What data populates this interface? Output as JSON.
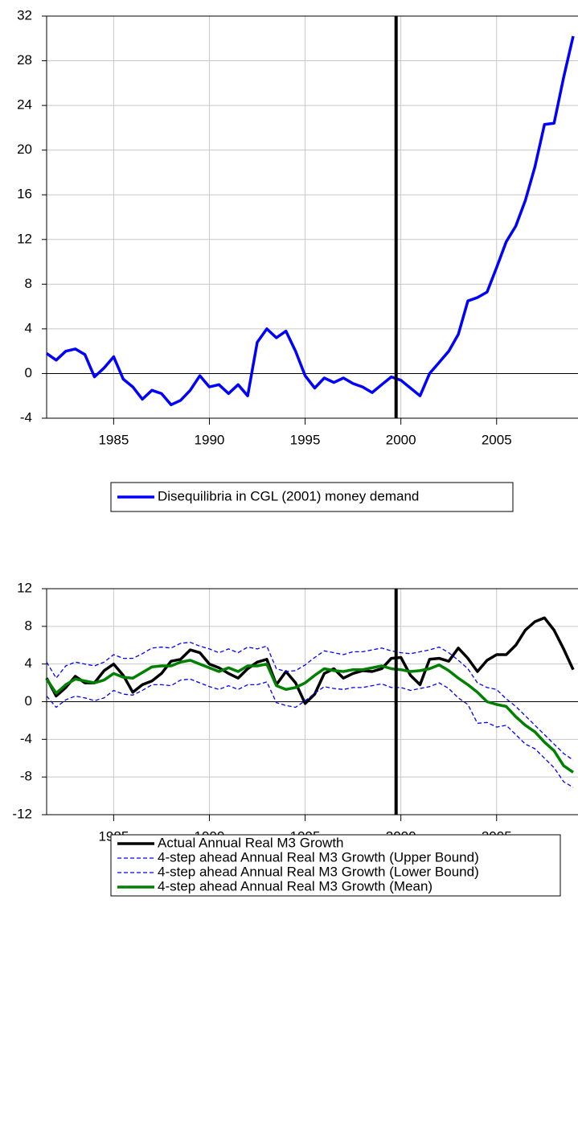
{
  "chart_data": [
    {
      "type": "line",
      "x": [
        1981.5,
        1982,
        1982.5,
        1983,
        1983.5,
        1984,
        1984.5,
        1985,
        1985.5,
        1986,
        1986.5,
        1987,
        1987.5,
        1988,
        1988.5,
        1989,
        1989.5,
        1990,
        1990.5,
        1991,
        1991.5,
        1992,
        1992.5,
        1993,
        1993.5,
        1994,
        1994.5,
        1995,
        1995.5,
        1996,
        1996.5,
        1997,
        1997.5,
        1998,
        1998.5,
        1999,
        1999.5,
        2000,
        2000.5,
        2001,
        2001.5,
        2002,
        2002.5,
        2003,
        2003.5,
        2004,
        2004.5,
        2005,
        2005.5,
        2006,
        2006.5,
        2007,
        2007.5,
        2008,
        2008.5,
        2009
      ],
      "series": [
        {
          "name": "Disequilibria in CGL (2001) money demand",
          "color": "#0000ff",
          "dashed": false,
          "values": [
            1.8,
            1.2,
            2.0,
            2.2,
            1.7,
            -0.3,
            0.5,
            1.5,
            -0.5,
            -1.2,
            -2.3,
            -1.5,
            -1.8,
            -2.8,
            -2.4,
            -1.5,
            -0.2,
            -1.2,
            -1.0,
            -1.8,
            -1.0,
            -2.0,
            2.8,
            4.0,
            3.2,
            3.8,
            2.0,
            -0.2,
            -1.3,
            -0.4,
            -0.8,
            -0.4,
            -0.9,
            -1.2,
            -1.7,
            -1.0,
            -0.3,
            -0.6,
            -1.3,
            -2.0,
            0.0,
            1.0,
            2.0,
            3.5,
            6.5,
            6.8,
            7.3,
            9.5,
            11.8,
            13.2,
            15.5,
            18.5,
            22.3,
            22.4,
            26.5,
            30.2
          ]
        }
      ],
      "xlim": [
        1981.5,
        2009.25
      ],
      "xticks": [
        1985,
        1990,
        1995,
        2000,
        2005
      ],
      "ylim": [
        -4,
        32
      ],
      "yticks": [
        -4,
        0,
        4,
        8,
        12,
        16,
        20,
        24,
        28,
        32
      ],
      "vline": 1999.75,
      "grid": true
    },
    {
      "type": "line",
      "x": [
        1981.5,
        1982,
        1982.5,
        1983,
        1983.5,
        1984,
        1984.5,
        1985,
        1985.5,
        1986,
        1986.5,
        1987,
        1987.5,
        1988,
        1988.5,
        1989,
        1989.5,
        1990,
        1990.5,
        1991,
        1991.5,
        1992,
        1992.5,
        1993,
        1993.5,
        1994,
        1994.5,
        1995,
        1995.5,
        1996,
        1996.5,
        1997,
        1997.5,
        1998,
        1998.5,
        1999,
        1999.5,
        2000,
        2000.5,
        2001,
        2001.5,
        2002,
        2002.5,
        2003,
        2003.5,
        2004,
        2004.5,
        2005,
        2005.5,
        2006,
        2006.5,
        2007,
        2007.5,
        2008,
        2008.5,
        2009
      ],
      "series": [
        {
          "name": "Actual Annual Real M3 Growth",
          "color": "#000000",
          "dashed": false,
          "values": [
            2.5,
            0.6,
            1.5,
            2.7,
            2.0,
            2.0,
            3.3,
            4.0,
            2.8,
            1.0,
            1.8,
            2.2,
            3.0,
            4.3,
            4.5,
            5.5,
            5.2,
            4.0,
            3.6,
            3.0,
            2.5,
            3.5,
            4.2,
            4.5,
            1.8,
            3.2,
            2.0,
            -0.2,
            0.8,
            3.0,
            3.5,
            2.5,
            3.0,
            3.3,
            3.2,
            3.5,
            4.6,
            4.7,
            2.8,
            1.8,
            4.5,
            4.6,
            4.3,
            5.7,
            4.6,
            3.2,
            4.4,
            5.0,
            5.0,
            6.0,
            7.6,
            8.5,
            8.9,
            7.6,
            5.6,
            3.4
          ]
        },
        {
          "name": "4-step ahead Annual Real M3 Growth (Upper Bound)",
          "color": "#0000ff",
          "dashed": true,
          "values": [
            4.2,
            2.5,
            3.8,
            4.2,
            4.0,
            3.8,
            4.2,
            5.0,
            4.6,
            4.6,
            5.1,
            5.7,
            5.8,
            5.7,
            6.2,
            6.3,
            5.9,
            5.6,
            5.2,
            5.6,
            5.2,
            5.8,
            5.6,
            5.9,
            3.5,
            3.2,
            3.3,
            3.9,
            4.7,
            5.4,
            5.2,
            5.0,
            5.3,
            5.3,
            5.5,
            5.7,
            5.4,
            5.2,
            5.1,
            5.3,
            5.5,
            5.8,
            5.2,
            4.4,
            3.5,
            2.0,
            1.5,
            1.3,
            0.3,
            -0.5,
            -1.5,
            -2.5,
            -3.5,
            -4.5,
            -5.5,
            -6.2
          ]
        },
        {
          "name": "4-step ahead Annual Real M3 Growth (Lower Bound)",
          "color": "#0000ff",
          "dashed": true,
          "values": [
            0.6,
            -0.6,
            0.2,
            0.6,
            0.4,
            0.1,
            0.4,
            1.2,
            0.8,
            0.7,
            1.2,
            1.8,
            1.8,
            1.7,
            2.3,
            2.4,
            2.0,
            1.6,
            1.3,
            1.7,
            1.3,
            1.8,
            1.8,
            2.1,
            -0.1,
            -0.4,
            -0.6,
            0.1,
            0.9,
            1.6,
            1.4,
            1.3,
            1.5,
            1.5,
            1.7,
            1.9,
            1.5,
            1.5,
            1.2,
            1.4,
            1.6,
            2.0,
            1.4,
            0.4,
            -0.3,
            -2.3,
            -2.2,
            -2.7,
            -2.5,
            -3.5,
            -4.5,
            -5.0,
            -6.0,
            -7.0,
            -8.5,
            -9.1
          ]
        },
        {
          "name": "4-step ahead Annual Real M3 Growth (Mean)",
          "color": "#008000",
          "dashed": false,
          "values": [
            2.4,
            0.9,
            1.8,
            2.4,
            2.2,
            2.0,
            2.3,
            3.0,
            2.6,
            2.5,
            3.1,
            3.7,
            3.8,
            3.8,
            4.2,
            4.4,
            4.0,
            3.6,
            3.2,
            3.6,
            3.2,
            3.8,
            3.8,
            4.0,
            1.7,
            1.3,
            1.5,
            2.0,
            2.8,
            3.5,
            3.3,
            3.2,
            3.4,
            3.4,
            3.6,
            3.8,
            3.5,
            3.4,
            3.2,
            3.3,
            3.5,
            3.9,
            3.3,
            2.5,
            1.8,
            1.0,
            0.0,
            -0.3,
            -0.5,
            -1.6,
            -2.5,
            -3.2,
            -4.3,
            -5.2,
            -6.8,
            -7.5
          ]
        }
      ],
      "xlim": [
        1981.5,
        2009.25
      ],
      "xticks": [
        1985,
        1990,
        1995,
        2000,
        2005
      ],
      "ylim": [
        -12,
        12
      ],
      "yticks": [
        -12,
        -8,
        -4,
        0,
        4,
        8,
        12
      ],
      "vline": 1999.75,
      "grid": true
    }
  ]
}
